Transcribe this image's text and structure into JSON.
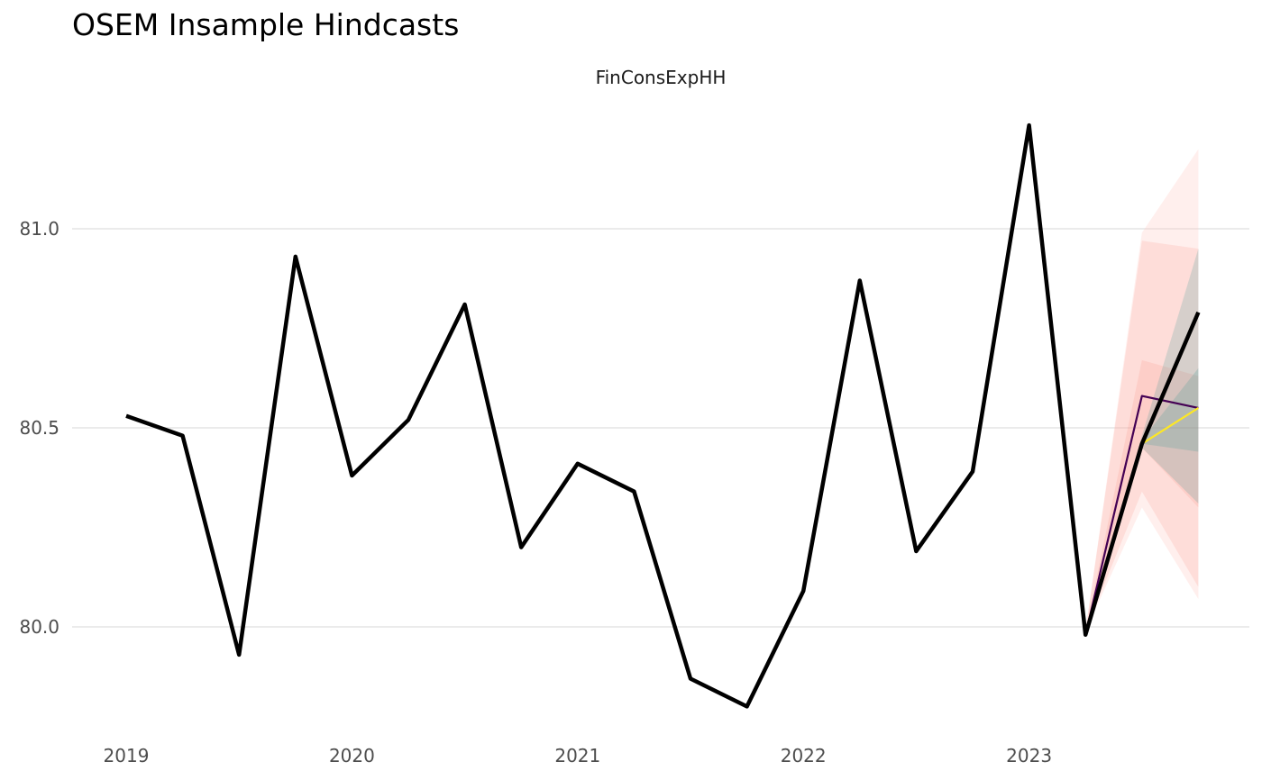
{
  "chart_data": {
    "type": "line",
    "title": "OSEM Insample Hindcasts",
    "facet": "FinConsExpHH",
    "xlabel": "",
    "ylabel": "",
    "x_ticks": [
      "2019",
      "2020",
      "2021",
      "2022",
      "2023"
    ],
    "y_ticks": [
      "80.0",
      "80.5",
      "81.0"
    ],
    "ylim": [
      79.75,
      81.3
    ],
    "grid": true,
    "legend": "none",
    "series": [
      {
        "role": "observed",
        "color": "#000000",
        "x": [
          "2019-Q1",
          "2019-Q2",
          "2019-Q3",
          "2019-Q4",
          "2020-Q1",
          "2020-Q2",
          "2020-Q3",
          "2020-Q4",
          "2021-Q1",
          "2021-Q2",
          "2021-Q3",
          "2021-Q4",
          "2022-Q1",
          "2022-Q2",
          "2022-Q3",
          "2022-Q4",
          "2023-Q1",
          "2023-Q2",
          "2023-Q3",
          "2023-Q4"
        ],
        "values": [
          80.53,
          80.48,
          79.93,
          80.93,
          80.38,
          80.52,
          80.81,
          80.2,
          80.41,
          80.34,
          79.87,
          79.8,
          80.09,
          80.87,
          80.19,
          80.39,
          81.26,
          79.98,
          80.46,
          80.79
        ]
      },
      {
        "role": "hindcast",
        "color": "#440154",
        "x": [
          "2023-Q2",
          "2023-Q3",
          "2023-Q4"
        ],
        "values": [
          79.98,
          80.58,
          80.55
        ]
      },
      {
        "role": "hindcast",
        "color": "#fde725",
        "x": [
          "2023-Q2",
          "2023-Q3",
          "2023-Q4"
        ],
        "values": [
          79.98,
          80.46,
          80.55
        ]
      }
    ],
    "bands": [
      {
        "color": "#ffc9c4",
        "opacity": 0.3,
        "x": [
          "2023-Q2",
          "2023-Q3",
          "2023-Q4"
        ],
        "lower": [
          79.99,
          80.3,
          80.07
        ],
        "upper": [
          79.99,
          80.99,
          81.2
        ]
      },
      {
        "color": "#f8766d",
        "opacity": 0.15,
        "x": [
          "2023-Q2",
          "2023-Q3",
          "2023-Q4"
        ],
        "lower": [
          79.99,
          80.34,
          80.1
        ],
        "upper": [
          79.99,
          80.97,
          80.95
        ]
      },
      {
        "color": "#f8766d",
        "opacity": 0.15,
        "x": [
          "2023-Q2",
          "2023-Q3",
          "2023-Q4"
        ],
        "lower": [
          79.99,
          80.45,
          80.3
        ],
        "upper": [
          79.99,
          80.67,
          80.63
        ]
      },
      {
        "color": "#21908c",
        "opacity": 0.18,
        "x": [
          "2023-Q2",
          "2023-Q3",
          "2023-Q4"
        ],
        "lower": [
          79.99,
          80.45,
          80.31
        ],
        "upper": [
          79.99,
          80.48,
          80.95
        ]
      },
      {
        "color": "#21908c",
        "opacity": 0.18,
        "x": [
          "2023-Q2",
          "2023-Q3",
          "2023-Q4"
        ],
        "lower": [
          79.99,
          80.46,
          80.44
        ],
        "upper": [
          79.99,
          80.47,
          80.65
        ]
      }
    ]
  }
}
